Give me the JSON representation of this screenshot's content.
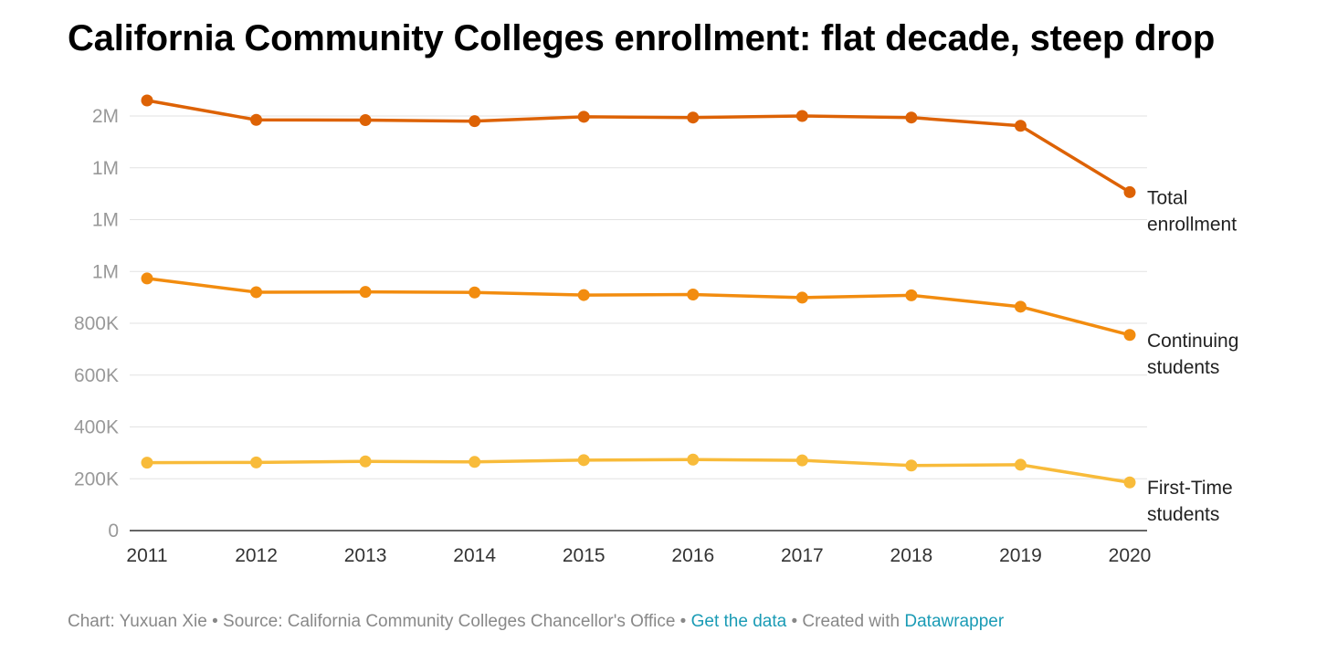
{
  "header": {
    "title": "California Community Colleges enrollment: flat decade, steep drop"
  },
  "footer": {
    "credit": "Chart: Yuxuan Xie",
    "separator": " • ",
    "source": "Source: California Community Colleges Chancellor's Office",
    "get_data_label": "Get the data",
    "created_with": "Created with",
    "tool_label": "Datawrapper",
    "link_color": "#1a9bb5"
  },
  "chart_data": {
    "type": "line",
    "title": "California Community Colleges enrollment: flat decade, steep drop",
    "xlabel": "",
    "ylabel": "",
    "x": [
      "2011",
      "2012",
      "2013",
      "2014",
      "2015",
      "2016",
      "2017",
      "2018",
      "2019",
      "2020"
    ],
    "ylim": [
      0,
      1600000
    ],
    "y_ticks": [
      {
        "value": 0,
        "label": "0"
      },
      {
        "value": 200000,
        "label": "200K"
      },
      {
        "value": 400000,
        "label": "400K"
      },
      {
        "value": 600000,
        "label": "600K"
      },
      {
        "value": 800000,
        "label": "800K"
      },
      {
        "value": 1000000,
        "label": "1M"
      },
      {
        "value": 1200000,
        "label": "1M"
      },
      {
        "value": 1400000,
        "label": "1M"
      },
      {
        "value": 1600000,
        "label": "2M"
      }
    ],
    "grid": true,
    "legend": "inline labels at right end of each line",
    "series": [
      {
        "name": "Total enrollment",
        "label_lines": [
          "Total",
          "enrollment"
        ],
        "color": "#dd6205",
        "values": [
          1660000,
          1585000,
          1584000,
          1580000,
          1597000,
          1594000,
          1600000,
          1594000,
          1562000,
          1306000
        ]
      },
      {
        "name": "Continuing students",
        "label_lines": [
          "Continuing",
          "students"
        ],
        "color": "#f28c0f",
        "values": [
          973000,
          920000,
          921000,
          919000,
          909000,
          911000,
          899000,
          908000,
          864000,
          755000
        ]
      },
      {
        "name": "First-Time students",
        "label_lines": [
          "First-Time",
          "students"
        ],
        "color": "#f8bb3a",
        "values": [
          262000,
          263000,
          267000,
          265000,
          272000,
          274000,
          271000,
          251000,
          254000,
          186000
        ]
      }
    ]
  }
}
